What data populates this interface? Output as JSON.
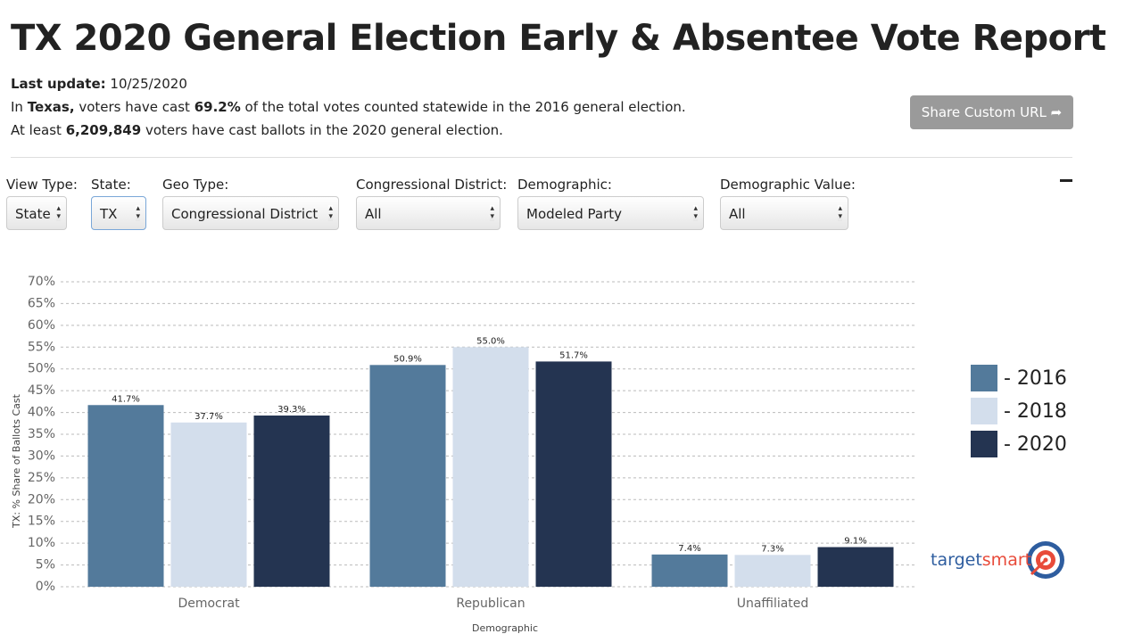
{
  "header": {
    "title": "TX 2020 General Election Early & Absentee Vote Report",
    "update_label": "Last update:",
    "update_value": "10/25/2020",
    "line1": [
      "In ",
      "Texas,",
      " voters have cast ",
      "69.2%",
      " of the total votes counted statewide in the 2016 general election."
    ],
    "line2": [
      "At least ",
      "6,209,849",
      " voters have cast ballots in the 2020 general election."
    ],
    "share_button": "Share Custom URL"
  },
  "filters": [
    {
      "label": "View Type:",
      "value": "State"
    },
    {
      "label": "State:",
      "value": "TX"
    },
    {
      "label": "Geo Type:",
      "value": "Congressional District"
    },
    {
      "label": "Congressional District:",
      "value": "All"
    },
    {
      "label": "Demographic:",
      "value": "Modeled Party"
    },
    {
      "label": "Demographic Value:",
      "value": "All"
    }
  ],
  "logo": {
    "text_a": "target",
    "text_b": "smart"
  },
  "chart_data": {
    "type": "bar",
    "y_label": "TX: % Share of Ballots Cast",
    "x_label": "Demographic",
    "categories": [
      "Democrat",
      "Republican",
      "Unaffiliated"
    ],
    "series": [
      {
        "name": "- 2016",
        "color": "#537a9b",
        "values": [
          41.7,
          50.9,
          7.4
        ],
        "value_labels": [
          "41.7%",
          "50.9%",
          "7.4%"
        ]
      },
      {
        "name": "- 2018",
        "color": "#d3deec",
        "values": [
          37.7,
          55.0,
          7.3
        ],
        "value_labels": [
          "37.7%",
          "55.0%",
          "7.3%"
        ]
      },
      {
        "name": "- 2020",
        "color": "#243451",
        "values": [
          39.3,
          51.7,
          9.1
        ],
        "value_labels": [
          "39.3%",
          "51.7%",
          "9.1%"
        ]
      }
    ],
    "ylim": [
      0,
      70
    ],
    "yticks": [
      {
        "value": 0,
        "label": "0%"
      },
      {
        "value": 5,
        "label": "5%"
      },
      {
        "value": 10,
        "label": "10%"
      },
      {
        "value": 15,
        "label": "15%"
      },
      {
        "value": 20,
        "label": "20%"
      },
      {
        "value": 25,
        "label": "25%"
      },
      {
        "value": 30,
        "label": "30%"
      },
      {
        "value": 35,
        "label": "35%"
      },
      {
        "value": 40,
        "label": "40%"
      },
      {
        "value": 45,
        "label": "45%"
      },
      {
        "value": 50,
        "label": "50%"
      },
      {
        "value": 55,
        "label": "55%"
      },
      {
        "value": 60,
        "label": "60%"
      },
      {
        "value": 65,
        "label": "65%"
      },
      {
        "value": 70,
        "label": "70%"
      }
    ],
    "grid": true
  }
}
